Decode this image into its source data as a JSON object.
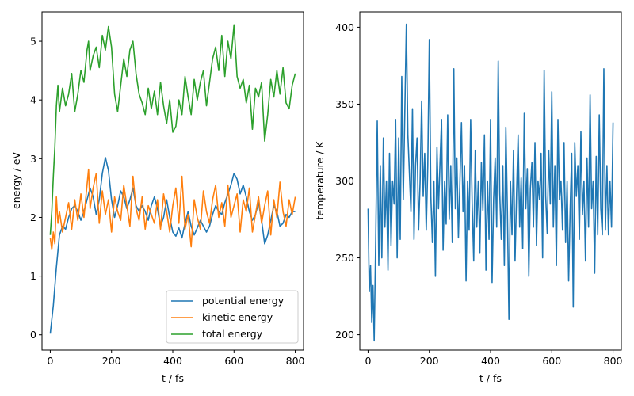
{
  "chart_data": [
    {
      "type": "line",
      "xlabel": "t / fs",
      "ylabel": "energy / eV",
      "xlim": [
        -27,
        827
      ],
      "ylim": [
        -0.26,
        5.5
      ],
      "xticks": [
        0,
        200,
        400,
        600,
        800
      ],
      "yticks": [
        0,
        1,
        2,
        3,
        4,
        5
      ],
      "legend": "lower-right",
      "grid": false,
      "series": [
        {
          "name": "potential energy",
          "color": "#1f77b4",
          "x": [
            0,
            10,
            20,
            30,
            40,
            50,
            60,
            70,
            80,
            90,
            100,
            110,
            120,
            130,
            140,
            150,
            160,
            170,
            180,
            190,
            200,
            210,
            220,
            230,
            240,
            250,
            260,
            270,
            280,
            290,
            300,
            310,
            320,
            330,
            340,
            350,
            360,
            370,
            380,
            390,
            400,
            410,
            420,
            430,
            440,
            450,
            460,
            470,
            480,
            490,
            500,
            510,
            520,
            530,
            540,
            550,
            560,
            570,
            580,
            590,
            600,
            610,
            620,
            630,
            640,
            650,
            660,
            670,
            680,
            690,
            700,
            710,
            720,
            730,
            740,
            750,
            760,
            770,
            780,
            790,
            800
          ],
          "y": [
            0.02,
            0.5,
            1.15,
            1.7,
            1.85,
            1.8,
            2.0,
            2.15,
            2.2,
            2.1,
            1.95,
            2.1,
            2.3,
            2.5,
            2.35,
            2.05,
            2.3,
            2.75,
            3.02,
            2.8,
            2.3,
            2.0,
            2.2,
            2.45,
            2.35,
            2.15,
            2.3,
            2.5,
            2.2,
            2.1,
            2.2,
            2.1,
            1.95,
            2.2,
            2.35,
            2.15,
            1.85,
            2.0,
            2.3,
            2.0,
            1.75,
            1.68,
            1.82,
            1.65,
            1.9,
            2.1,
            1.85,
            1.7,
            1.82,
            1.95,
            1.85,
            1.75,
            1.85,
            2.05,
            2.2,
            2.1,
            2.05,
            2.25,
            2.4,
            2.55,
            2.75,
            2.65,
            2.4,
            2.55,
            2.35,
            2.1,
            1.95,
            2.05,
            2.25,
            1.95,
            1.55,
            1.7,
            1.95,
            2.2,
            2.1,
            1.85,
            1.9,
            2.05,
            2.0,
            2.1,
            2.1
          ]
        },
        {
          "name": "kinetic energy",
          "color": "#ff7f0e",
          "x": [
            0,
            5,
            10,
            15,
            20,
            25,
            30,
            40,
            50,
            60,
            70,
            80,
            90,
            100,
            110,
            120,
            125,
            130,
            140,
            150,
            160,
            170,
            180,
            190,
            200,
            210,
            220,
            230,
            240,
            250,
            260,
            270,
            280,
            290,
            300,
            310,
            320,
            330,
            340,
            350,
            360,
            370,
            380,
            390,
            400,
            410,
            420,
            430,
            440,
            450,
            460,
            470,
            480,
            490,
            500,
            510,
            520,
            530,
            540,
            550,
            560,
            570,
            580,
            590,
            600,
            610,
            620,
            630,
            640,
            650,
            660,
            670,
            680,
            690,
            700,
            710,
            720,
            730,
            740,
            750,
            760,
            770,
            780,
            790,
            800
          ],
          "y": [
            1.65,
            1.45,
            1.75,
            1.55,
            2.35,
            1.9,
            2.1,
            1.75,
            2.0,
            2.25,
            1.8,
            2.3,
            1.95,
            2.4,
            2.0,
            2.55,
            2.82,
            2.15,
            2.5,
            2.75,
            1.9,
            2.45,
            2.05,
            2.3,
            1.75,
            2.35,
            2.1,
            1.95,
            2.55,
            2.2,
            1.85,
            2.7,
            2.15,
            1.95,
            2.35,
            1.8,
            2.2,
            2.05,
            1.9,
            2.3,
            1.8,
            2.4,
            2.1,
            1.75,
            2.2,
            2.5,
            1.9,
            2.7,
            1.8,
            2.05,
            1.5,
            2.3,
            2.0,
            1.8,
            2.45,
            2.1,
            1.9,
            2.3,
            2.55,
            2.0,
            2.25,
            1.85,
            2.55,
            2.0,
            2.2,
            2.4,
            1.75,
            2.3,
            2.1,
            2.5,
            1.75,
            2.05,
            2.35,
            1.9,
            2.2,
            2.45,
            1.7,
            2.3,
            2.0,
            2.6,
            2.1,
            1.85,
            2.3,
            2.05,
            2.35
          ]
        },
        {
          "name": "total energy",
          "color": "#2ca02c",
          "x": [
            0,
            5,
            10,
            15,
            20,
            25,
            30,
            40,
            50,
            60,
            70,
            80,
            90,
            100,
            110,
            120,
            125,
            130,
            140,
            150,
            160,
            170,
            180,
            190,
            200,
            210,
            220,
            230,
            240,
            250,
            260,
            270,
            280,
            290,
            300,
            310,
            320,
            330,
            340,
            350,
            360,
            370,
            380,
            390,
            400,
            410,
            420,
            430,
            440,
            450,
            460,
            470,
            480,
            490,
            500,
            510,
            520,
            530,
            540,
            550,
            560,
            570,
            580,
            590,
            600,
            610,
            620,
            630,
            640,
            650,
            660,
            670,
            680,
            690,
            700,
            710,
            720,
            730,
            740,
            750,
            760,
            770,
            780,
            790,
            800
          ],
          "y": [
            1.7,
            2.1,
            2.7,
            3.2,
            3.9,
            4.25,
            3.8,
            4.2,
            3.9,
            4.1,
            4.45,
            3.8,
            4.1,
            4.5,
            4.3,
            4.85,
            5.0,
            4.5,
            4.75,
            4.9,
            4.55,
            5.1,
            4.85,
            5.25,
            4.9,
            4.1,
            3.8,
            4.25,
            4.7,
            4.4,
            4.85,
            5.0,
            4.45,
            4.1,
            3.95,
            3.75,
            4.2,
            3.85,
            4.15,
            3.75,
            4.3,
            3.9,
            3.6,
            4.0,
            3.45,
            3.55,
            4.0,
            3.75,
            4.4,
            4.05,
            3.75,
            4.35,
            4.0,
            4.3,
            4.5,
            3.9,
            4.3,
            4.7,
            4.9,
            4.5,
            5.1,
            4.4,
            5.0,
            4.7,
            5.28,
            4.4,
            4.2,
            4.35,
            3.95,
            4.25,
            3.5,
            4.2,
            4.05,
            4.3,
            3.3,
            3.75,
            4.35,
            4.05,
            4.5,
            4.1,
            4.55,
            3.95,
            3.85,
            4.25,
            4.45
          ]
        }
      ]
    },
    {
      "type": "line",
      "xlabel": "t / fs",
      "ylabel": "temperature / K",
      "xlim": [
        -27,
        827
      ],
      "ylim": [
        190,
        410
      ],
      "xticks": [
        0,
        200,
        400,
        600,
        800
      ],
      "yticks": [
        200,
        250,
        300,
        350,
        400
      ],
      "grid": false,
      "series": [
        {
          "color": "#1f77b4",
          "x": [
            0,
            4,
            8,
            12,
            16,
            20,
            25,
            30,
            35,
            40,
            45,
            50,
            55,
            60,
            65,
            70,
            75,
            80,
            85,
            90,
            95,
            100,
            105,
            110,
            115,
            120,
            125,
            130,
            135,
            140,
            145,
            150,
            155,
            160,
            165,
            170,
            175,
            180,
            185,
            190,
            195,
            200,
            205,
            210,
            215,
            220,
            225,
            230,
            235,
            240,
            245,
            250,
            255,
            260,
            265,
            270,
            275,
            280,
            285,
            290,
            295,
            300,
            305,
            310,
            315,
            320,
            325,
            330,
            335,
            340,
            345,
            350,
            355,
            360,
            365,
            370,
            375,
            380,
            385,
            390,
            395,
            400,
            405,
            410,
            415,
            420,
            425,
            430,
            435,
            440,
            445,
            450,
            455,
            460,
            465,
            470,
            475,
            480,
            485,
            490,
            495,
            500,
            505,
            510,
            515,
            520,
            525,
            530,
            535,
            540,
            545,
            550,
            555,
            560,
            565,
            570,
            575,
            580,
            585,
            590,
            595,
            600,
            605,
            610,
            615,
            620,
            625,
            630,
            635,
            640,
            645,
            650,
            655,
            660,
            665,
            670,
            675,
            680,
            685,
            690,
            695,
            700,
            705,
            710,
            715,
            720,
            725,
            730,
            735,
            740,
            745,
            750,
            755,
            760,
            765,
            770,
            775,
            780,
            785,
            790,
            795,
            800
          ],
          "y": [
            282,
            228,
            245,
            208,
            232,
            196,
            262,
            339,
            245,
            310,
            250,
            328,
            270,
            300,
            242,
            318,
            258,
            300,
            285,
            340,
            250,
            328,
            262,
            368,
            288,
            345,
            402,
            330,
            305,
            280,
            347,
            262,
            310,
            328,
            268,
            300,
            352,
            290,
            318,
            268,
            310,
            392,
            290,
            260,
            300,
            238,
            322,
            282,
            312,
            340,
            255,
            300,
            272,
            343,
            275,
            310,
            260,
            373,
            282,
            315,
            263,
            300,
            338,
            280,
            310,
            235,
            300,
            268,
            340,
            285,
            248,
            320,
            270,
            300,
            253,
            312,
            281,
            330,
            242,
            300,
            262,
            340,
            234,
            288,
            315,
            270,
            378,
            292,
            262,
            310,
            245,
            335,
            280,
            210,
            300,
            265,
            320,
            248,
            292,
            330,
            270,
            302,
            256,
            344,
            282,
            308,
            238,
            295,
            312,
            270,
            325,
            258,
            300,
            288,
            318,
            250,
            372,
            290,
            266,
            320,
            285,
            358,
            270,
            310,
            245,
            340,
            288,
            300,
            268,
            325,
            260,
            300,
            235,
            282,
            318,
            218,
            325,
            290,
            310,
            262,
            332,
            278,
            300,
            248,
            315,
            270,
            356,
            282,
            300,
            240,
            316,
            265,
            343,
            282,
            265,
            373,
            268,
            310,
            265,
            300,
            270,
            338
          ]
        }
      ]
    }
  ]
}
